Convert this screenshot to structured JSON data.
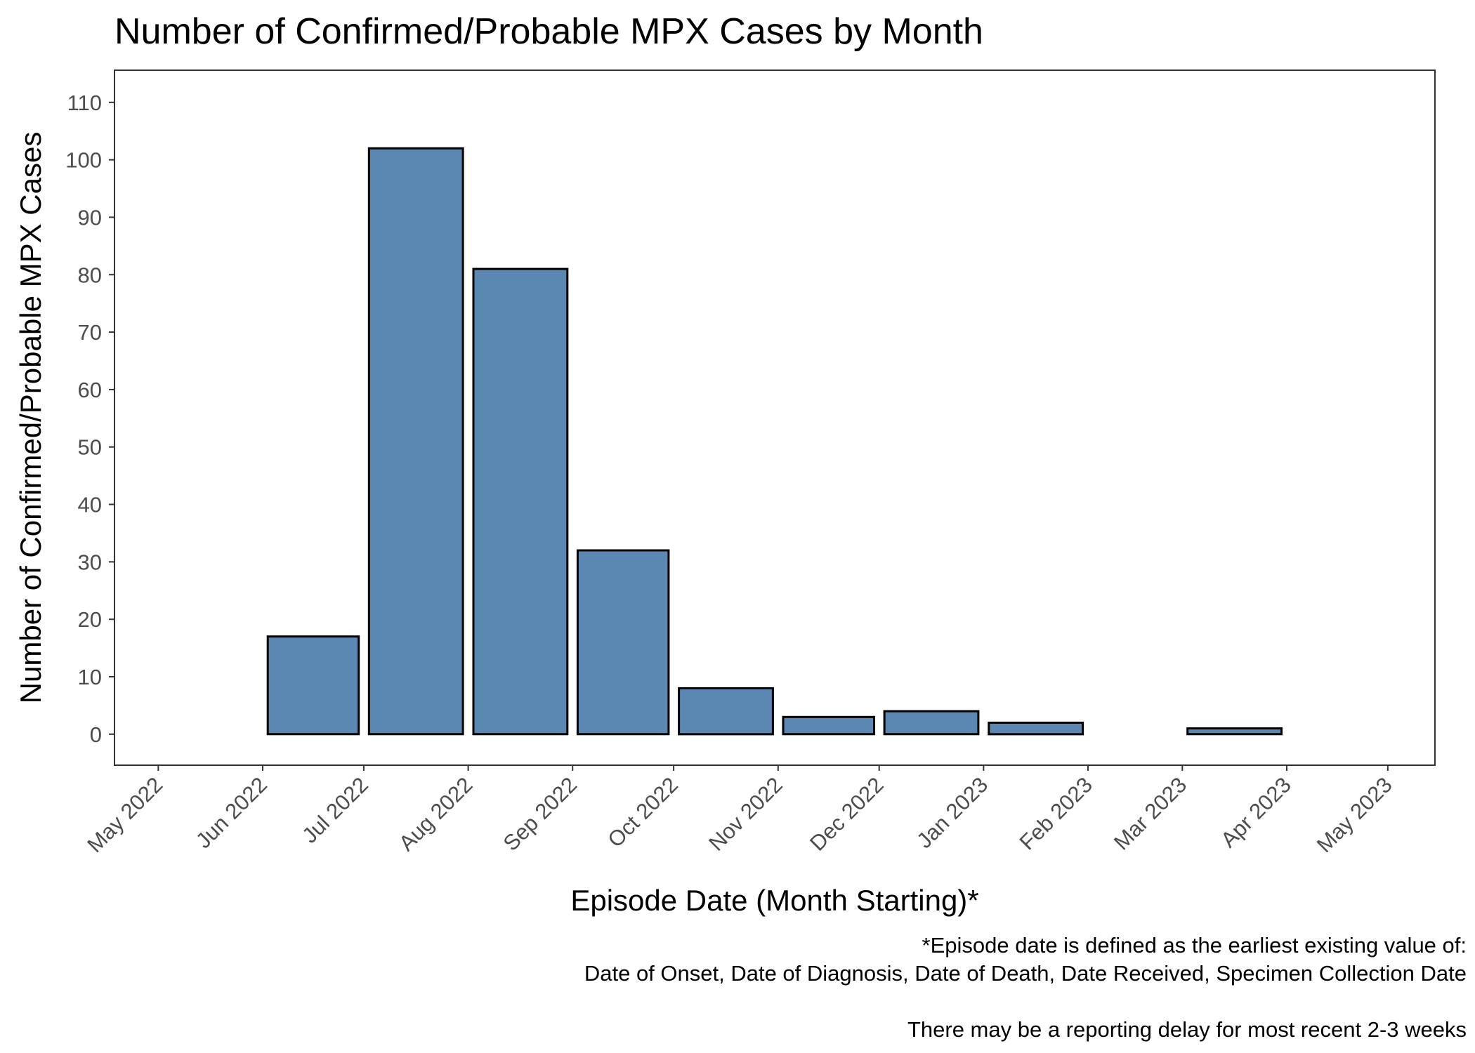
{
  "chart_data": {
    "type": "bar",
    "title": "Number of Confirmed/Probable MPX Cases by Month",
    "xlabel": "Episode Date (Month Starting)*",
    "ylabel": "Number of Confirmed/Probable MPX Cases",
    "x_ticks": [
      "May 2022",
      "Jun 2022",
      "Jul 2022",
      "Aug 2022",
      "Sep 2022",
      "Oct 2022",
      "Nov 2022",
      "Dec 2022",
      "Jan 2023",
      "Feb 2023",
      "Mar 2023",
      "Apr 2023",
      "May 2023"
    ],
    "x_range": [
      "2022-04-18",
      "2023-05-15"
    ],
    "bars": [
      {
        "month": "2022-06",
        "value": 17
      },
      {
        "month": "2022-07",
        "value": 102
      },
      {
        "month": "2022-08",
        "value": 81
      },
      {
        "month": "2022-09",
        "value": 32
      },
      {
        "month": "2022-10",
        "value": 8
      },
      {
        "month": "2022-11",
        "value": 3
      },
      {
        "month": "2022-12",
        "value": 4
      },
      {
        "month": "2023-01",
        "value": 2
      },
      {
        "month": "2023-03",
        "value": 1
      }
    ],
    "y_ticks": [
      0,
      10,
      20,
      30,
      40,
      50,
      60,
      70,
      80,
      90,
      100,
      110
    ],
    "ylim": [
      -5.4,
      115.6
    ],
    "bar_color": "#5b87b3",
    "bar_outline": "#000000",
    "grid": false,
    "caption_lines": [
      "*Episode date is defined as the earliest existing value of:",
      "Date of Onset, Date of Diagnosis, Date of Death, Date Received, Specimen Collection Date",
      "",
      "There may be a reporting delay for most recent 2-3 weeks"
    ]
  }
}
